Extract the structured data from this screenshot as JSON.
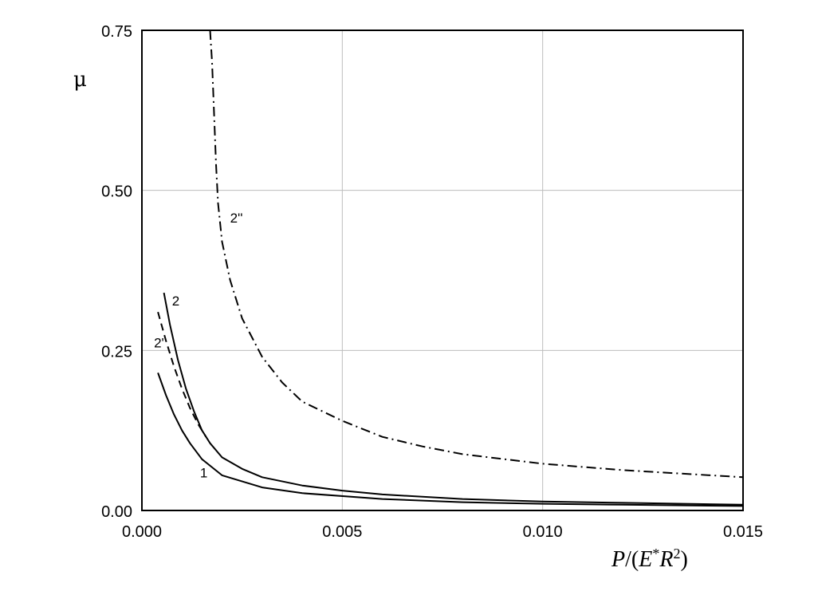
{
  "chart_data": {
    "type": "line",
    "xlabel": "P/(E*R²)",
    "ylabel": "μ",
    "xlim": [
      0.0,
      0.015
    ],
    "ylim": [
      0.0,
      0.75
    ],
    "xticks": [
      "0.000",
      "0.005",
      "0.010",
      "0.015"
    ],
    "xtick_values": [
      0.0,
      0.005,
      0.01,
      0.015
    ],
    "yticks": [
      "0.00",
      "0.25",
      "0.50",
      "0.75"
    ],
    "ytick_values": [
      0.0,
      0.25,
      0.5,
      0.75
    ],
    "grid": true,
    "series": [
      {
        "name": "1",
        "style": "solid",
        "x": [
          0.0004,
          0.0006,
          0.0008,
          0.001,
          0.0012,
          0.0015,
          0.002,
          0.003,
          0.004,
          0.006,
          0.008,
          0.01,
          0.012,
          0.015
        ],
        "y": [
          0.215,
          0.18,
          0.15,
          0.125,
          0.105,
          0.08,
          0.055,
          0.036,
          0.027,
          0.018,
          0.013,
          0.0105,
          0.009,
          0.007
        ]
      },
      {
        "name": "2",
        "style": "solid",
        "x": [
          0.00055,
          0.0007,
          0.0009,
          0.0011,
          0.0013,
          0.0015,
          0.0017,
          0.002,
          0.0025,
          0.003,
          0.004,
          0.005,
          0.006,
          0.008,
          0.01,
          0.012,
          0.015
        ],
        "y": [
          0.34,
          0.29,
          0.235,
          0.19,
          0.155,
          0.125,
          0.105,
          0.083,
          0.065,
          0.052,
          0.039,
          0.031,
          0.025,
          0.018,
          0.014,
          0.012,
          0.009
        ]
      },
      {
        "name": "2'",
        "style": "dashed",
        "x": [
          0.0004,
          0.0006,
          0.0008,
          0.001,
          0.0012,
          0.0014,
          0.0016
        ],
        "y": [
          0.31,
          0.265,
          0.225,
          0.19,
          0.16,
          0.135,
          0.115
        ]
      },
      {
        "name": "2''",
        "style": "dashdot",
        "x": [
          0.0017,
          0.00175,
          0.0018,
          0.00185,
          0.0019,
          0.002,
          0.0022,
          0.0025,
          0.003,
          0.0035,
          0.004,
          0.005,
          0.006,
          0.007,
          0.008,
          0.01,
          0.012,
          0.015
        ],
        "y": [
          0.75,
          0.7,
          0.62,
          0.54,
          0.48,
          0.42,
          0.36,
          0.3,
          0.24,
          0.2,
          0.17,
          0.14,
          0.115,
          0.1,
          0.088,
          0.073,
          0.063,
          0.052
        ]
      }
    ],
    "labels": [
      {
        "text": "1",
        "x": 0.00145,
        "y": 0.052
      },
      {
        "text": "2",
        "x": 0.00075,
        "y": 0.32
      },
      {
        "text": "2'",
        "x": 0.0003,
        "y": 0.255
      },
      {
        "text": "2''",
        "x": 0.0022,
        "y": 0.45
      }
    ]
  }
}
